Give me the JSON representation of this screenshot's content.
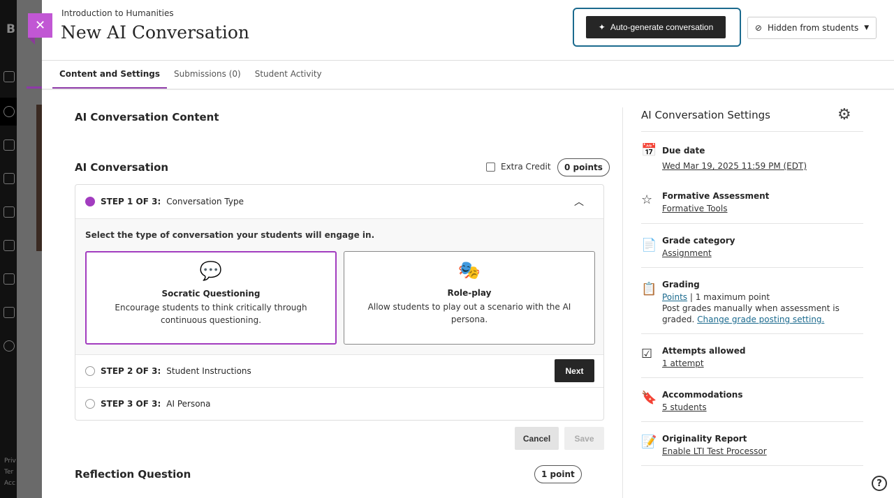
{
  "background": {
    "logo_letter": "B",
    "footer_lines": [
      "Priv",
      "Ter",
      "Acc"
    ]
  },
  "header": {
    "course": "Introduction to Humanities",
    "title": "New AI Conversation",
    "autogen_label": "Auto-generate conversation",
    "visibility_label": "Hidden from students"
  },
  "tabs": [
    {
      "label": "Content and Settings"
    },
    {
      "label": "Submissions (0)"
    },
    {
      "label": "Student Activity"
    }
  ],
  "content": {
    "section_title": "AI Conversation Content",
    "conversation_title": "AI Conversation",
    "extra_credit_label": "Extra Credit",
    "points_pill": "0 points",
    "steps": [
      {
        "prefix": "STEP 1 OF 3:",
        "label": "Conversation Type"
      },
      {
        "prefix": "STEP 2 OF 3:",
        "label": "Student Instructions"
      },
      {
        "prefix": "STEP 3 OF 3:",
        "label": "AI Persona"
      }
    ],
    "prompt": "Select the type of conversation your students will engage in.",
    "cards": [
      {
        "title": "Socratic Questioning",
        "desc": "Encourage students to think critically through continuous questioning.",
        "selected": true
      },
      {
        "title": "Role-play",
        "desc": "Allow students to play out a scenario with the AI persona.",
        "selected": false
      }
    ],
    "next_label": "Next",
    "cancel_label": "Cancel",
    "save_label": "Save",
    "reflection_title": "Reflection Question",
    "reflection_points": "1 point"
  },
  "settings": {
    "title": "AI Conversation Settings",
    "due": {
      "label": "Due date",
      "value": "Wed Mar 19, 2025 11:59 PM (EDT)"
    },
    "formative": {
      "label": "Formative Assessment",
      "value": "Formative Tools"
    },
    "category": {
      "label": "Grade category",
      "value": "Assignment"
    },
    "grading": {
      "label": "Grading",
      "link": "Points",
      "text": "| 1 maximum point",
      "note": "Post grades manually when assessment is graded.",
      "note_link": "Change grade posting setting."
    },
    "attempts": {
      "label": "Attempts allowed",
      "value": "1 attempt"
    },
    "accommodations": {
      "label": "Accommodations",
      "value": "5 students"
    },
    "originality": {
      "label": "Originality Report",
      "value": "Enable LTI Test Processor"
    }
  },
  "colors": {
    "accent": "#a23cbf",
    "link": "#1b6a8e",
    "dark_button": "#262626"
  }
}
